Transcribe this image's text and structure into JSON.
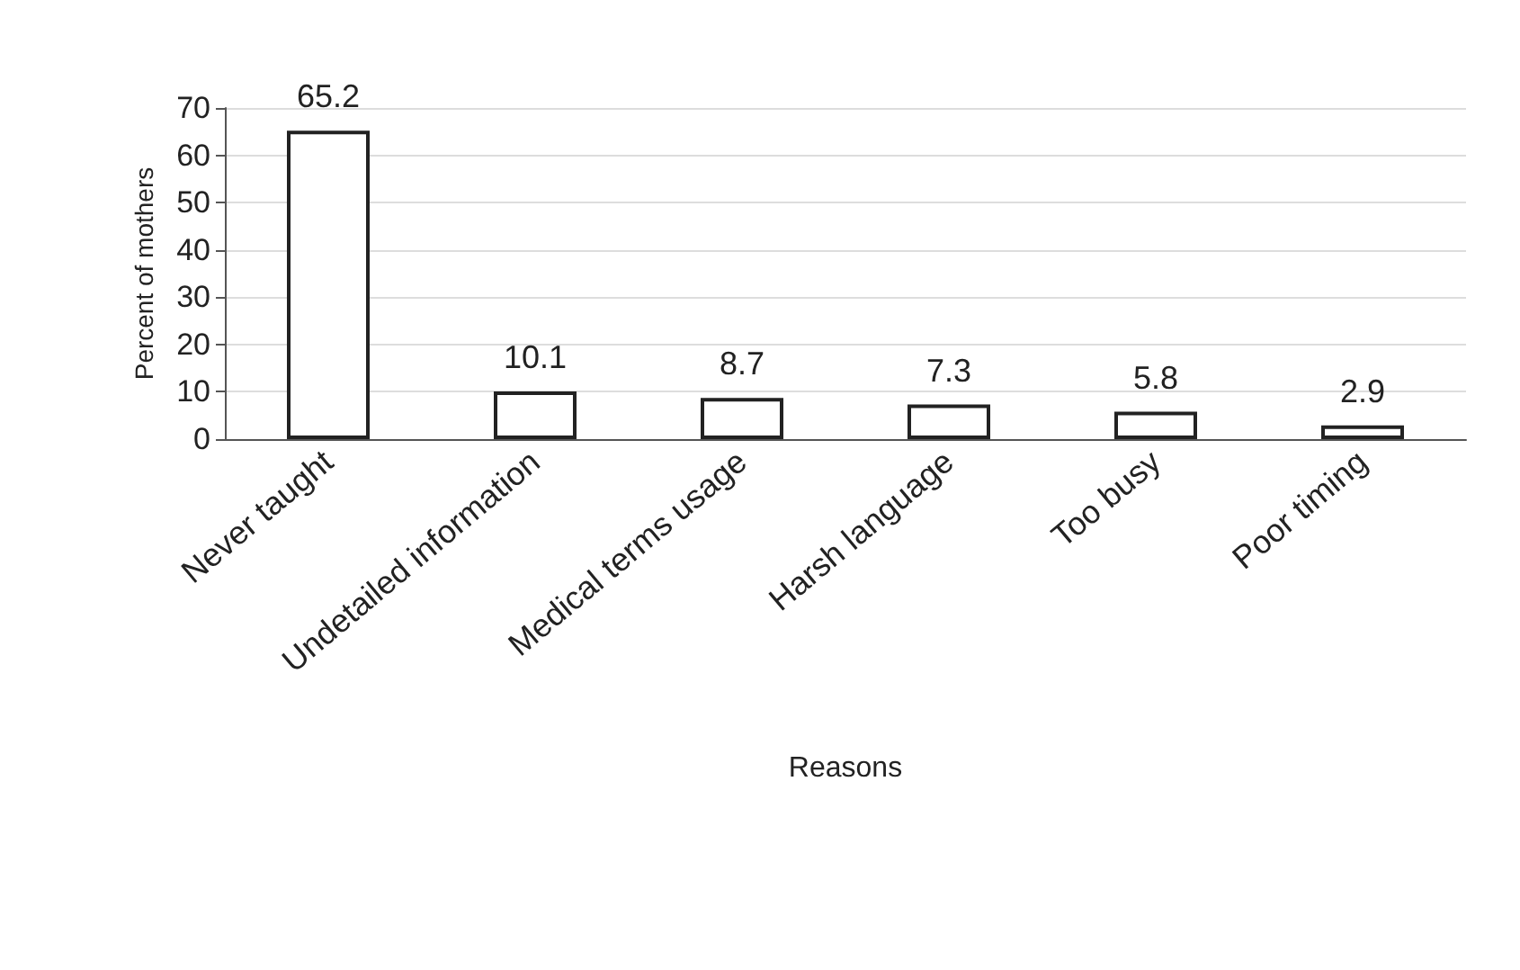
{
  "chart_data": {
    "type": "bar",
    "xlabel": "Reasons",
    "ylabel": "Percent of mothers",
    "categories": [
      "Never taught",
      "Undetailed information",
      "Medical terms usage",
      "Harsh language",
      "Too busy",
      "Poor timing"
    ],
    "values": [
      65.2,
      10.1,
      8.7,
      7.3,
      5.8,
      2.9
    ],
    "color": "#ffffff",
    "ylim": [
      0,
      70
    ],
    "yticks": [
      0,
      10,
      20,
      30,
      40,
      50,
      60,
      70
    ],
    "grid": "y",
    "data_labels": true
  }
}
